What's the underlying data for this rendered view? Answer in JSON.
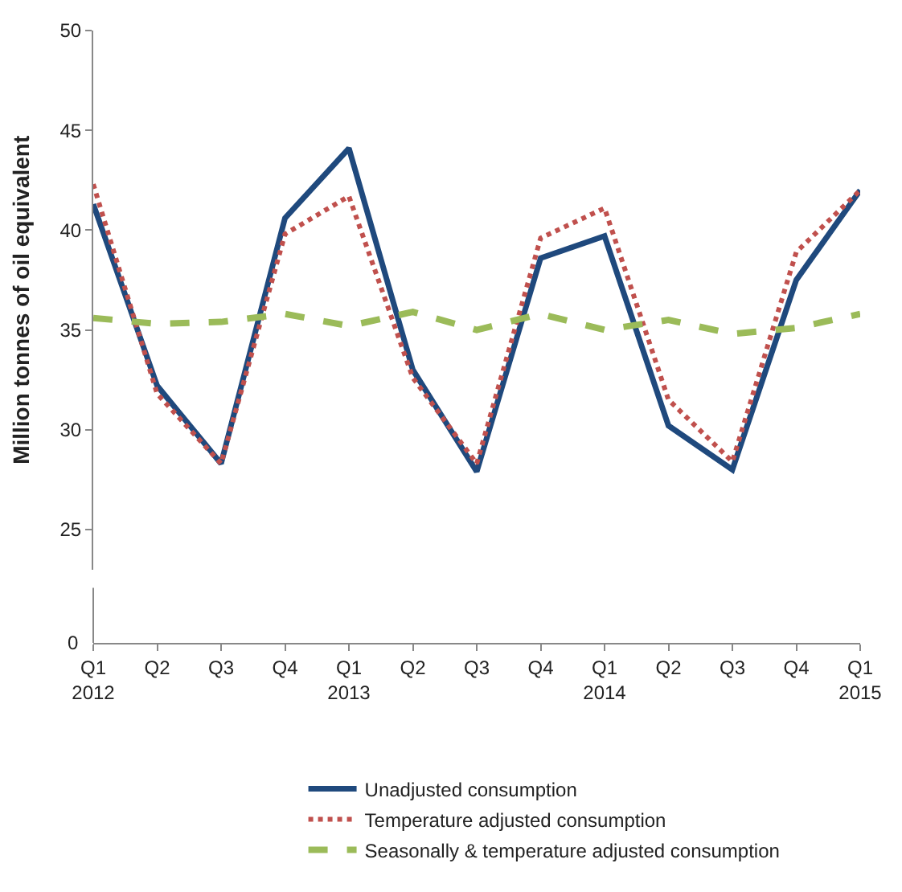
{
  "chart_data": {
    "type": "line",
    "ylabel": "Million tonnes of oil equivalent",
    "categories": [
      "Q1\n2012",
      "Q2",
      "Q3",
      "Q4",
      "Q1\n2013",
      "Q2",
      "Q3",
      "Q4",
      "Q1\n2014",
      "Q2",
      "Q3",
      "Q4",
      "Q1\n2015"
    ],
    "series": [
      {
        "name": "Unadjusted consumption",
        "color": "#1f497d",
        "line_style": "solid",
        "values": [
          41.3,
          32.2,
          28.3,
          40.6,
          44.1,
          33.0,
          27.9,
          38.6,
          39.7,
          30.2,
          28.0,
          37.5,
          42.0
        ]
      },
      {
        "name": "Temperature adjusted consumption",
        "color": "#c0504d",
        "line_style": "dotted",
        "values": [
          42.3,
          31.8,
          28.3,
          39.8,
          41.7,
          32.6,
          28.3,
          39.6,
          41.1,
          31.5,
          28.4,
          38.9,
          42.0
        ]
      },
      {
        "name": "Seasonally & temperature adjusted consumption",
        "color": "#9bbb59",
        "line_style": "dashed",
        "values": [
          35.6,
          35.3,
          35.4,
          35.8,
          35.2,
          35.9,
          35.0,
          35.8,
          35.0,
          35.5,
          34.8,
          35.1,
          35.8
        ]
      }
    ],
    "ylim": [
      23,
      50
    ],
    "yticks": [
      25,
      30,
      35,
      40,
      45,
      50
    ],
    "annotations": [
      "0"
    ],
    "legend": "bottom",
    "marker": "none"
  }
}
